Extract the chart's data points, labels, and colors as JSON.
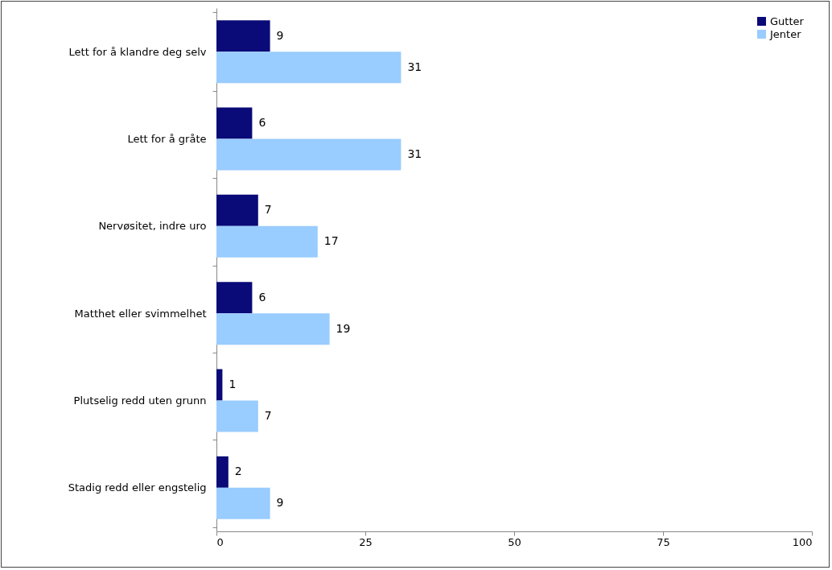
{
  "chart_data": {
    "type": "bar",
    "orientation": "horizontal",
    "categories": [
      "Lett for å klandre deg selv",
      "Lett for å gråte",
      "Nervøsitet, indre uro",
      "Matthet eller svimmelhet",
      "Plutselig redd uten grunn",
      "Stadig redd eller engstelig"
    ],
    "series": [
      {
        "name": "Gutter",
        "color": "#0a0a78",
        "values": [
          9,
          6,
          7,
          6,
          1,
          2
        ]
      },
      {
        "name": "Jenter",
        "color": "#99ccff",
        "values": [
          31,
          31,
          17,
          19,
          7,
          9
        ]
      }
    ],
    "xlim": [
      0,
      100
    ],
    "xticks": [
      0,
      25,
      50,
      75,
      100
    ],
    "grid": false,
    "legend": "top right",
    "data_labels": true
  }
}
